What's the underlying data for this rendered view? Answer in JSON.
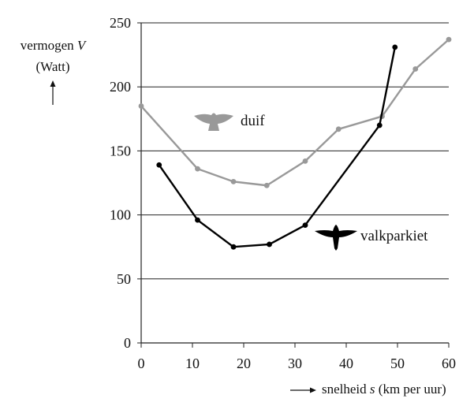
{
  "chart_data": {
    "type": "line",
    "ylabel_text": "vermogen",
    "ylabel_var": "V",
    "ylabel_unit": "(Watt)",
    "xlabel_text": "snelheid",
    "xlabel_var": "s",
    "xlabel_unit": "(km per uur)",
    "xlim": [
      0,
      60
    ],
    "ylim": [
      0,
      250
    ],
    "xticks": [
      0,
      10,
      20,
      30,
      40,
      50,
      60
    ],
    "yticks": [
      0,
      50,
      100,
      150,
      200,
      250
    ],
    "grid": "horizontal",
    "series": [
      {
        "name": "duif",
        "color": "#999999",
        "icon": "pigeon-icon",
        "x": [
          0,
          11,
          18,
          24.5,
          32,
          38.5,
          47,
          53.5,
          60
        ],
        "y": [
          185,
          136,
          126,
          123,
          142,
          167,
          177,
          214,
          237
        ]
      },
      {
        "name": "valkparkiet",
        "color": "#000000",
        "icon": "cockatiel-icon",
        "x": [
          3.5,
          11,
          18,
          25,
          32,
          46.5,
          49.5
        ],
        "y": [
          139,
          96,
          75,
          77,
          92,
          170,
          231
        ]
      }
    ]
  }
}
